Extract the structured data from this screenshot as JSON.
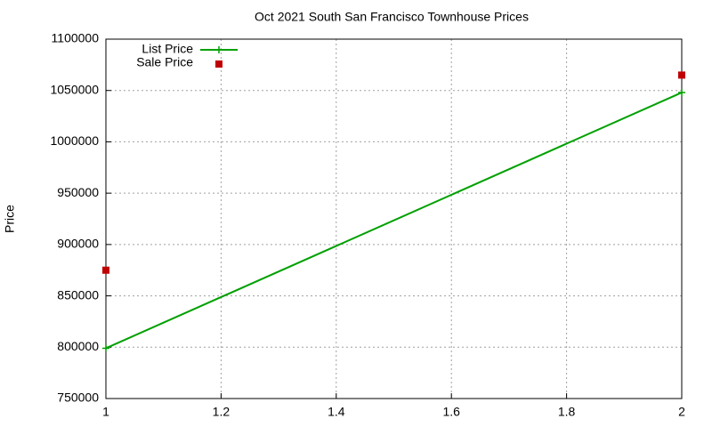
{
  "chart_data": {
    "type": "line",
    "title": "Oct 2021 South San Francisco Townhouse Prices",
    "ylabel": "Price",
    "series": [
      {
        "name": "List Price",
        "color": "#00a000",
        "marker": "cross",
        "x": [
          1,
          2
        ],
        "values": [
          799000,
          1048000
        ]
      },
      {
        "name": "Sale Price",
        "color": "#c00000",
        "marker": "square",
        "x": [
          1,
          2
        ],
        "values": [
          875000,
          1065000
        ]
      }
    ],
    "xlim": [
      1,
      2
    ],
    "xticks": [
      1,
      1.2,
      1.4,
      1.6,
      1.8,
      2
    ],
    "ylim": [
      750000,
      1100000
    ],
    "yticks": [
      750000,
      800000,
      850000,
      900000,
      950000,
      1000000,
      1050000,
      1100000
    ],
    "grid": true,
    "legend": "top left"
  }
}
